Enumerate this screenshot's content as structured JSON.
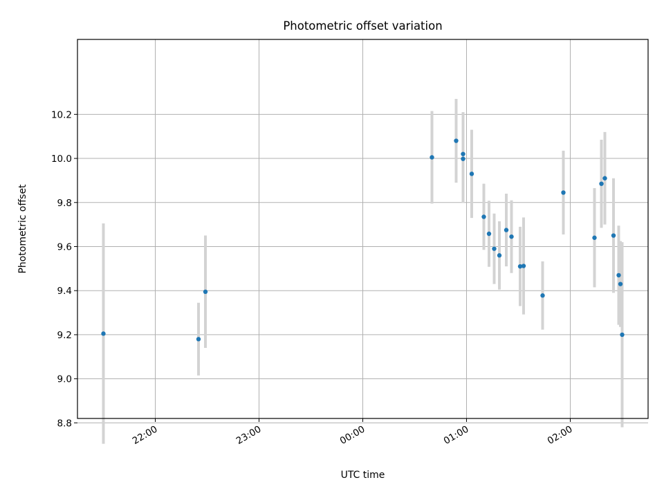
{
  "chart_data": {
    "type": "scatter",
    "title": "Photometric offset variation",
    "xlabel": "UTC time",
    "ylabel": "Photometric offset",
    "grid": true,
    "xlim": [
      "21:15",
      "02:45"
    ],
    "ylim": [
      8.82,
      10.54
    ],
    "x_ticks": [
      "22:00",
      "23:00",
      "00:00",
      "01:00",
      "02:00"
    ],
    "y_ticks": [
      "8.8",
      "9.0",
      "9.2",
      "9.4",
      "9.6",
      "9.8",
      "10.0",
      "10.2"
    ],
    "marker_color": "#1f77b4",
    "errorbar_color": "#d3d3d3",
    "series": [
      {
        "points": [
          {
            "x": "21:30",
            "y": 9.205,
            "err": 0.5
          },
          {
            "x": "22:25",
            "y": 9.18,
            "err": 0.165
          },
          {
            "x": "22:29",
            "y": 9.395,
            "err": 0.255
          },
          {
            "x": "00:40",
            "y": 10.005,
            "err": 0.21
          },
          {
            "x": "00:54",
            "y": 10.08,
            "err": 0.19
          },
          {
            "x": "00:58",
            "y": 9.998,
            "err": 0.2
          },
          {
            "x": "00:58",
            "y": 10.02,
            "err": 0.19
          },
          {
            "x": "01:03",
            "y": 9.93,
            "err": 0.2
          },
          {
            "x": "01:10",
            "y": 9.735,
            "err": 0.15
          },
          {
            "x": "01:13",
            "y": 9.658,
            "err": 0.15
          },
          {
            "x": "01:16",
            "y": 9.59,
            "err": 0.16
          },
          {
            "x": "01:19",
            "y": 9.56,
            "err": 0.155
          },
          {
            "x": "01:23",
            "y": 9.675,
            "err": 0.165
          },
          {
            "x": "01:26",
            "y": 9.645,
            "err": 0.165
          },
          {
            "x": "01:31",
            "y": 9.51,
            "err": 0.18
          },
          {
            "x": "01:33",
            "y": 9.512,
            "err": 0.22
          },
          {
            "x": "01:44",
            "y": 9.378,
            "err": 0.155
          },
          {
            "x": "01:56",
            "y": 9.845,
            "err": 0.19
          },
          {
            "x": "02:14",
            "y": 9.64,
            "err": 0.225
          },
          {
            "x": "02:18",
            "y": 9.885,
            "err": 0.2
          },
          {
            "x": "02:20",
            "y": 9.91,
            "err": 0.21
          },
          {
            "x": "02:25",
            "y": 9.65,
            "err": 0.26
          },
          {
            "x": "02:28",
            "y": 9.47,
            "err": 0.225
          },
          {
            "x": "02:29",
            "y": 9.43,
            "err": 0.195
          },
          {
            "x": "02:30",
            "y": 9.2,
            "err": 0.42
          }
        ]
      }
    ]
  }
}
